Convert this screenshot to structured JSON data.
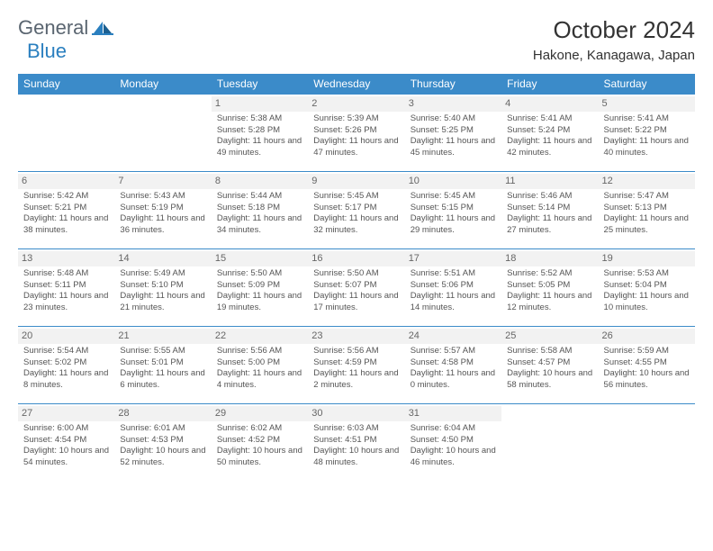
{
  "brand": {
    "general": "General",
    "blue": "Blue"
  },
  "title": "October 2024",
  "location": "Hakone, Kanagawa, Japan",
  "colors": {
    "header_bg": "#3b8bc9",
    "header_text": "#ffffff",
    "daynum_bg": "#f2f2f2",
    "cell_border": "#3b8bc9",
    "text": "#555555",
    "logo_gray": "#5a6570",
    "logo_blue": "#2a7fbf"
  },
  "weekdays": [
    "Sunday",
    "Monday",
    "Tuesday",
    "Wednesday",
    "Thursday",
    "Friday",
    "Saturday"
  ],
  "weeks": [
    [
      null,
      null,
      {
        "n": "1",
        "sr": "5:38 AM",
        "ss": "5:28 PM",
        "dl": "11 hours and 49 minutes."
      },
      {
        "n": "2",
        "sr": "5:39 AM",
        "ss": "5:26 PM",
        "dl": "11 hours and 47 minutes."
      },
      {
        "n": "3",
        "sr": "5:40 AM",
        "ss": "5:25 PM",
        "dl": "11 hours and 45 minutes."
      },
      {
        "n": "4",
        "sr": "5:41 AM",
        "ss": "5:24 PM",
        "dl": "11 hours and 42 minutes."
      },
      {
        "n": "5",
        "sr": "5:41 AM",
        "ss": "5:22 PM",
        "dl": "11 hours and 40 minutes."
      }
    ],
    [
      {
        "n": "6",
        "sr": "5:42 AM",
        "ss": "5:21 PM",
        "dl": "11 hours and 38 minutes."
      },
      {
        "n": "7",
        "sr": "5:43 AM",
        "ss": "5:19 PM",
        "dl": "11 hours and 36 minutes."
      },
      {
        "n": "8",
        "sr": "5:44 AM",
        "ss": "5:18 PM",
        "dl": "11 hours and 34 minutes."
      },
      {
        "n": "9",
        "sr": "5:45 AM",
        "ss": "5:17 PM",
        "dl": "11 hours and 32 minutes."
      },
      {
        "n": "10",
        "sr": "5:45 AM",
        "ss": "5:15 PM",
        "dl": "11 hours and 29 minutes."
      },
      {
        "n": "11",
        "sr": "5:46 AM",
        "ss": "5:14 PM",
        "dl": "11 hours and 27 minutes."
      },
      {
        "n": "12",
        "sr": "5:47 AM",
        "ss": "5:13 PM",
        "dl": "11 hours and 25 minutes."
      }
    ],
    [
      {
        "n": "13",
        "sr": "5:48 AM",
        "ss": "5:11 PM",
        "dl": "11 hours and 23 minutes."
      },
      {
        "n": "14",
        "sr": "5:49 AM",
        "ss": "5:10 PM",
        "dl": "11 hours and 21 minutes."
      },
      {
        "n": "15",
        "sr": "5:50 AM",
        "ss": "5:09 PM",
        "dl": "11 hours and 19 minutes."
      },
      {
        "n": "16",
        "sr": "5:50 AM",
        "ss": "5:07 PM",
        "dl": "11 hours and 17 minutes."
      },
      {
        "n": "17",
        "sr": "5:51 AM",
        "ss": "5:06 PM",
        "dl": "11 hours and 14 minutes."
      },
      {
        "n": "18",
        "sr": "5:52 AM",
        "ss": "5:05 PM",
        "dl": "11 hours and 12 minutes."
      },
      {
        "n": "19",
        "sr": "5:53 AM",
        "ss": "5:04 PM",
        "dl": "11 hours and 10 minutes."
      }
    ],
    [
      {
        "n": "20",
        "sr": "5:54 AM",
        "ss": "5:02 PM",
        "dl": "11 hours and 8 minutes."
      },
      {
        "n": "21",
        "sr": "5:55 AM",
        "ss": "5:01 PM",
        "dl": "11 hours and 6 minutes."
      },
      {
        "n": "22",
        "sr": "5:56 AM",
        "ss": "5:00 PM",
        "dl": "11 hours and 4 minutes."
      },
      {
        "n": "23",
        "sr": "5:56 AM",
        "ss": "4:59 PM",
        "dl": "11 hours and 2 minutes."
      },
      {
        "n": "24",
        "sr": "5:57 AM",
        "ss": "4:58 PM",
        "dl": "11 hours and 0 minutes."
      },
      {
        "n": "25",
        "sr": "5:58 AM",
        "ss": "4:57 PM",
        "dl": "10 hours and 58 minutes."
      },
      {
        "n": "26",
        "sr": "5:59 AM",
        "ss": "4:55 PM",
        "dl": "10 hours and 56 minutes."
      }
    ],
    [
      {
        "n": "27",
        "sr": "6:00 AM",
        "ss": "4:54 PM",
        "dl": "10 hours and 54 minutes."
      },
      {
        "n": "28",
        "sr": "6:01 AM",
        "ss": "4:53 PM",
        "dl": "10 hours and 52 minutes."
      },
      {
        "n": "29",
        "sr": "6:02 AM",
        "ss": "4:52 PM",
        "dl": "10 hours and 50 minutes."
      },
      {
        "n": "30",
        "sr": "6:03 AM",
        "ss": "4:51 PM",
        "dl": "10 hours and 48 minutes."
      },
      {
        "n": "31",
        "sr": "6:04 AM",
        "ss": "4:50 PM",
        "dl": "10 hours and 46 minutes."
      },
      null,
      null
    ]
  ],
  "labels": {
    "sunrise": "Sunrise: ",
    "sunset": "Sunset: ",
    "daylight": "Daylight: "
  }
}
